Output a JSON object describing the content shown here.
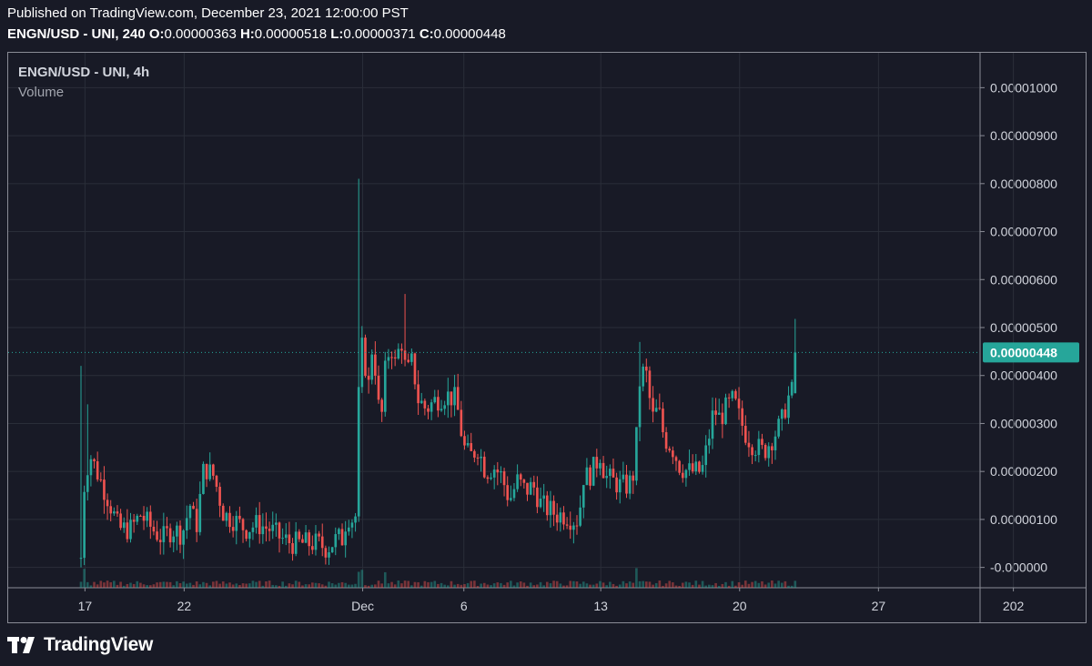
{
  "header": {
    "published": "Published on TradingView.com, December 23, 2021 12:00:00 PST",
    "pair_interval": "ENGN/USD - UNI, 240",
    "open_label": "O:",
    "open_value": "0.00000363",
    "high_label": "H:",
    "high_value": "0.00000518",
    "low_label": "L:",
    "low_value": "0.00000371",
    "close_label": "C:",
    "close_value": "0.00000448"
  },
  "legend": {
    "symbol": "ENGN/USD - UNI, 4h",
    "volume": "Volume"
  },
  "footer": {
    "brand": "TradingView"
  },
  "colors": {
    "background": "#181a26",
    "up": "#26a69a",
    "down": "#ef5350",
    "grid": "#2a2e39",
    "axis_text": "#d1d4dc",
    "last_price_bg": "#26a69a"
  },
  "chart_data": {
    "type": "candlestick",
    "xlabel": "",
    "ylabel": "",
    "ylim": [
      -5e-07,
      1.05e-05
    ],
    "y_ticks": [
      "0.00001000",
      "0.00000900",
      "0.00000800",
      "0.00000700",
      "0.00000600",
      "0.00000500",
      "0.00000400",
      "0.00000300",
      "0.00000200",
      "0.00000100",
      "-0.000000"
    ],
    "y_tick_values": [
      1e-05,
      9e-06,
      8e-06,
      7e-06,
      6e-06,
      5e-06,
      4e-06,
      3e-06,
      2e-06,
      1e-06,
      0
    ],
    "x_ticks": [
      "17",
      "22",
      "Dec",
      "6",
      "13",
      "20",
      "27",
      "202"
    ],
    "x_tick_days": [
      16.9,
      21.9,
      30.9,
      36,
      42.9,
      49.9,
      56.9,
      63.7
    ],
    "last_price": 4.48e-06,
    "last_price_label": "0.00000448",
    "grid": true,
    "anchors": [
      [
        16.7,
        2e-07
      ],
      [
        16.9,
        2e-06
      ],
      [
        17.2,
        2.3e-06
      ],
      [
        17.6,
        1.9e-06
      ],
      [
        18.1,
        1.4e-06
      ],
      [
        18.6,
        8e-07
      ],
      [
        19.2,
        8e-07
      ],
      [
        19.7,
        1.1e-06
      ],
      [
        20.3,
        8e-07
      ],
      [
        20.8,
        6e-07
      ],
      [
        21.3,
        8e-07
      ],
      [
        21.8,
        7e-07
      ],
      [
        22.2,
        1.3e-06
      ],
      [
        22.5,
        8e-07
      ],
      [
        22.9,
        2.1e-06
      ],
      [
        23.4,
        1.9e-06
      ],
      [
        23.9,
        1.1e-06
      ],
      [
        24.4,
        1e-06
      ],
      [
        25.0,
        8e-07
      ],
      [
        25.6,
        9e-07
      ],
      [
        26.2,
        8e-07
      ],
      [
        26.8,
        6e-07
      ],
      [
        27.4,
        5e-07
      ],
      [
        28.0,
        5e-07
      ],
      [
        28.6,
        5e-07
      ],
      [
        29.1,
        4e-07
      ],
      [
        29.6,
        6e-07
      ],
      [
        29.9,
        6e-07
      ],
      [
        30.1,
        1.1e-06
      ],
      [
        30.4,
        1e-06
      ],
      [
        30.6,
        1.1e-06
      ],
      [
        30.75,
        4.8e-06
      ],
      [
        30.95,
        4.4e-06
      ],
      [
        31.2,
        3.8e-06
      ],
      [
        31.4,
        4.7e-06
      ],
      [
        31.6,
        3.9e-06
      ],
      [
        31.8,
        2.8e-06
      ],
      [
        32.0,
        4e-06
      ],
      [
        32.3,
        4.7e-06
      ],
      [
        32.6,
        4.1e-06
      ],
      [
        32.8,
        4.9e-06
      ],
      [
        33.1,
        4e-06
      ],
      [
        33.4,
        4.3e-06
      ],
      [
        33.7,
        3.5e-06
      ],
      [
        34.1,
        3.3e-06
      ],
      [
        34.6,
        3.5e-06
      ],
      [
        35.1,
        3.6e-06
      ],
      [
        35.6,
        3.5e-06
      ],
      [
        36.0,
        2.5e-06
      ],
      [
        36.3,
        2.3e-06
      ],
      [
        36.7,
        2.5e-06
      ],
      [
        37.1,
        2e-06
      ],
      [
        37.5,
        2.1e-06
      ],
      [
        37.9,
        1.9e-06
      ],
      [
        38.3,
        1.4e-06
      ],
      [
        38.7,
        1.8e-06
      ],
      [
        39.1,
        1.6e-06
      ],
      [
        39.5,
        1.7e-06
      ],
      [
        39.9,
        1.3e-06
      ],
      [
        40.3,
        1.2e-06
      ],
      [
        40.7,
        1.1e-06
      ],
      [
        41.1,
        1.1e-06
      ],
      [
        41.5,
        1e-06
      ],
      [
        41.8,
        1e-06
      ],
      [
        42.0,
        1.9e-06
      ],
      [
        42.3,
        1.9e-06
      ],
      [
        42.6,
        2.1e-06
      ],
      [
        42.9,
        2.4e-06
      ],
      [
        43.1,
        1.9e-06
      ],
      [
        43.5,
        1.8e-06
      ],
      [
        43.9,
        1.7e-06
      ],
      [
        44.3,
        1.7e-06
      ],
      [
        44.6,
        2e-06
      ],
      [
        44.9,
        4.1e-06
      ],
      [
        45.2,
        4e-06
      ],
      [
        45.5,
        3.1e-06
      ],
      [
        45.8,
        3.3e-06
      ],
      [
        46.1,
        2.7e-06
      ],
      [
        46.5,
        2.5e-06
      ],
      [
        46.9,
        2.1e-06
      ],
      [
        47.3,
        2e-06
      ],
      [
        47.7,
        2e-06
      ],
      [
        48.0,
        2e-06
      ],
      [
        48.3,
        2.6e-06
      ],
      [
        48.6,
        3.3e-06
      ],
      [
        48.9,
        3.1e-06
      ],
      [
        49.2,
        3.3e-06
      ],
      [
        49.6,
        3.5e-06
      ],
      [
        49.9,
        3.1e-06
      ],
      [
        50.2,
        2.8e-06
      ],
      [
        50.5,
        2.6e-06
      ],
      [
        50.8,
        2.5e-06
      ],
      [
        51.1,
        2.4e-06
      ],
      [
        51.4,
        2.6e-06
      ],
      [
        51.7,
        2.8e-06
      ],
      [
        52.0,
        3e-06
      ],
      [
        52.3,
        3.5e-06
      ],
      [
        52.6,
        3.7e-06
      ],
      [
        52.75,
        4.4e-06
      ]
    ]
  }
}
